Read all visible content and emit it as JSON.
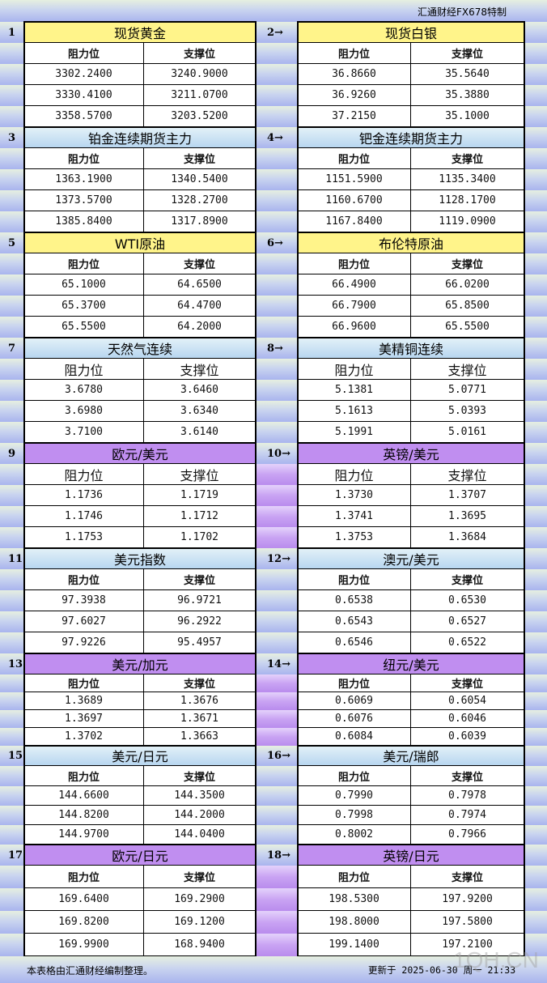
{
  "top_title": "汇通财经FX678特制",
  "sub_labels": {
    "resistance": "阻力位",
    "support": "支撑位"
  },
  "colors": {
    "yellow": "#fff48a",
    "blue": "#c8e0f4",
    "purple": "#c08ef0"
  },
  "blocks": [
    {
      "left": {
        "num": "1",
        "name": "现货黄金",
        "rows": [
          [
            "3302.2400",
            "3240.9000"
          ],
          [
            "3330.4100",
            "3211.0700"
          ],
          [
            "3358.5700",
            "3203.5200"
          ]
        ]
      },
      "right": {
        "num": "2→",
        "name": "现货白银",
        "rows": [
          [
            "36.8660",
            "35.5640"
          ],
          [
            "36.9260",
            "35.3880"
          ],
          [
            "37.2150",
            "35.1000"
          ]
        ]
      },
      "color": "yellow"
    },
    {
      "left": {
        "num": "3",
        "name": "铂金连续期货主力",
        "rows": [
          [
            "1363.1900",
            "1340.5400"
          ],
          [
            "1373.5700",
            "1328.2700"
          ],
          [
            "1385.8400",
            "1317.8900"
          ]
        ]
      },
      "right": {
        "num": "4→",
        "name": "钯金连续期货主力",
        "rows": [
          [
            "1151.5900",
            "1135.3400"
          ],
          [
            "1160.6700",
            "1128.1700"
          ],
          [
            "1167.8400",
            "1119.0900"
          ]
        ]
      },
      "color": "blue"
    },
    {
      "left": {
        "num": "5",
        "name": "WTI原油",
        "rows": [
          [
            "65.1000",
            "64.6500"
          ],
          [
            "65.3700",
            "64.4700"
          ],
          [
            "65.5500",
            "64.2000"
          ]
        ]
      },
      "right": {
        "num": "6→",
        "name": "布伦特原油",
        "rows": [
          [
            "66.4900",
            "66.0200"
          ],
          [
            "66.7900",
            "65.8500"
          ],
          [
            "66.9600",
            "65.5500"
          ]
        ]
      },
      "color": "yellow"
    },
    {
      "left": {
        "num": "7",
        "name": "天然气连续",
        "rows": [
          [
            "3.6780",
            "3.6460"
          ],
          [
            "3.6980",
            "3.6340"
          ],
          [
            "3.7100",
            "3.6140"
          ]
        ]
      },
      "right": {
        "num": "8→",
        "name": "美精铜连续",
        "rows": [
          [
            "5.1381",
            "5.0771"
          ],
          [
            "5.1613",
            "5.0393"
          ],
          [
            "5.1991",
            "5.0161"
          ]
        ]
      },
      "color": "blue"
    },
    {
      "left": {
        "num": "9",
        "name": "欧元/美元",
        "rows": [
          [
            "1.1736",
            "1.1719"
          ],
          [
            "1.1746",
            "1.1712"
          ],
          [
            "1.1753",
            "1.1702"
          ]
        ]
      },
      "right": {
        "num": "10→",
        "name": "英镑/美元",
        "rows": [
          [
            "1.3730",
            "1.3707"
          ],
          [
            "1.3741",
            "1.3695"
          ],
          [
            "1.3753",
            "1.3684"
          ]
        ]
      },
      "color": "purple"
    },
    {
      "left": {
        "num": "11",
        "name": "美元指数",
        "rows": [
          [
            "97.3938",
            "96.9721"
          ],
          [
            "97.6027",
            "96.2922"
          ],
          [
            "97.9226",
            "95.4957"
          ]
        ]
      },
      "right": {
        "num": "12→",
        "name": "澳元/美元",
        "rows": [
          [
            "0.6538",
            "0.6530"
          ],
          [
            "0.6543",
            "0.6527"
          ],
          [
            "0.6546",
            "0.6522"
          ]
        ]
      },
      "color": "blue"
    },
    {
      "left": {
        "num": "13",
        "name": "美元/加元",
        "rows": [
          [
            "1.3689",
            "1.3676"
          ],
          [
            "1.3697",
            "1.3671"
          ],
          [
            "1.3702",
            "1.3663"
          ]
        ]
      },
      "right": {
        "num": "14→",
        "name": "纽元/美元",
        "rows": [
          [
            "0.6069",
            "0.6054"
          ],
          [
            "0.6076",
            "0.6046"
          ],
          [
            "0.6084",
            "0.6039"
          ]
        ]
      },
      "color": "purple"
    },
    {
      "left": {
        "num": "15",
        "name": "美元/日元",
        "rows": [
          [
            "144.6600",
            "144.3500"
          ],
          [
            "144.8200",
            "144.2000"
          ],
          [
            "144.9700",
            "144.0400"
          ]
        ]
      },
      "right": {
        "num": "16→",
        "name": "美元/瑞郎",
        "rows": [
          [
            "0.7990",
            "0.7978"
          ],
          [
            "0.7998",
            "0.7974"
          ],
          [
            "0.8002",
            "0.7966"
          ]
        ]
      },
      "color": "blue"
    },
    {
      "left": {
        "num": "17",
        "name": "欧元/日元",
        "rows": [
          [
            "169.6400",
            "169.2900"
          ],
          [
            "169.8200",
            "169.1200"
          ],
          [
            "169.9900",
            "168.9400"
          ]
        ]
      },
      "right": {
        "num": "18→",
        "name": "英镑/日元",
        "rows": [
          [
            "198.5300",
            "197.9200"
          ],
          [
            "198.8000",
            "197.5800"
          ],
          [
            "199.1400",
            "197.2100"
          ]
        ]
      },
      "color": "purple"
    }
  ],
  "footer": {
    "note": "本表格由汇通财经编制整理。",
    "updated": "更新于 2025-06-30 周一 21:33"
  },
  "watermark": "1QH.CN"
}
